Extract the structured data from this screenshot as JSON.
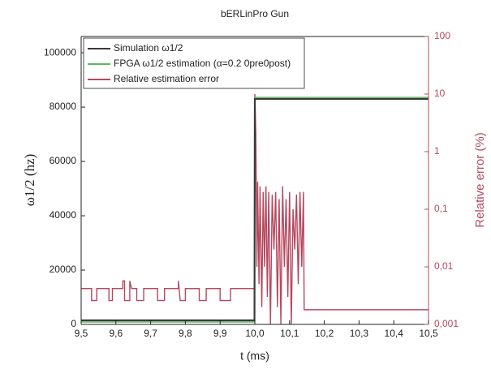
{
  "chart_data": {
    "type": "line",
    "title": "bERLinPro Gun",
    "x_label": "t (ms)",
    "y_label": "ω1/2 (hz)",
    "y2_label": "Relative error (%)",
    "xlim": [
      9.5,
      10.5
    ],
    "xticks": [
      {
        "value": 9.5,
        "label": "9,5"
      },
      {
        "value": 9.6,
        "label": "9,6"
      },
      {
        "value": 9.7,
        "label": "9,7"
      },
      {
        "value": 9.8,
        "label": "9,8"
      },
      {
        "value": 9.9,
        "label": "9,9"
      },
      {
        "value": 10.0,
        "label": "10,0"
      },
      {
        "value": 10.1,
        "label": "10,1"
      },
      {
        "value": 10.2,
        "label": "10,2"
      },
      {
        "value": 10.3,
        "label": "10,3"
      },
      {
        "value": 10.4,
        "label": "10,4"
      },
      {
        "value": 10.5,
        "label": "10,5"
      }
    ],
    "ylim": [
      0,
      106000
    ],
    "yticks": [
      0,
      20000,
      40000,
      60000,
      80000,
      100000
    ],
    "y2lim": [
      0.001,
      100
    ],
    "y2scale": "log",
    "y2color": "#b5485e",
    "y2ticks": [
      {
        "value": 0.001,
        "label": "0,001"
      },
      {
        "value": 0.01,
        "label": "0,01"
      },
      {
        "value": 0.1,
        "label": "0,1"
      },
      {
        "value": 1,
        "label": "1"
      },
      {
        "value": 10,
        "label": "10"
      },
      {
        "value": 100,
        "label": "100"
      }
    ],
    "legend": "upper left",
    "series": [
      {
        "name": "Simulation ω1/2",
        "color": "#3a3a3a",
        "x": [
          9.5,
          9.999,
          10.0,
          10.5
        ],
        "values": [
          1500,
          1500,
          83000,
          83000
        ]
      },
      {
        "name": "FPGA ω1/2 estimation (α=0.2 0pre0post)",
        "color": "#5cb85c",
        "x": [
          9.5,
          9.999,
          10.0,
          10.5
        ],
        "values": [
          900,
          900,
          83600,
          83600
        ]
      },
      {
        "name": "Relative estimation error",
        "color": "#b5485e",
        "axis": "y2",
        "x": [
          9.5,
          9.53,
          9.53,
          9.545,
          9.545,
          9.58,
          9.58,
          9.59,
          9.59,
          9.62,
          9.62,
          9.625,
          9.625,
          9.64,
          9.64,
          9.645,
          9.66,
          9.66,
          9.68,
          9.68,
          9.72,
          9.72,
          9.74,
          9.74,
          9.78,
          9.78,
          9.785,
          9.8,
          9.8,
          9.84,
          9.84,
          9.86,
          9.86,
          9.9,
          9.9,
          9.93,
          9.93,
          9.999,
          10.0,
          10.003,
          10.006,
          10.008,
          10.012,
          10.015,
          10.02,
          10.024,
          10.028,
          10.032,
          10.036,
          10.04,
          10.045,
          10.05,
          10.055,
          10.06,
          10.065,
          10.07,
          10.075,
          10.08,
          10.085,
          10.09,
          10.095,
          10.1,
          10.105,
          10.11,
          10.115,
          10.12,
          10.125,
          10.13,
          10.135,
          10.14,
          10.142,
          10.5
        ],
        "values": [
          0.0042,
          0.0042,
          0.0026,
          0.0026,
          0.0042,
          0.0042,
          0.0026,
          0.0026,
          0.0042,
          0.0042,
          0.0057,
          0.0057,
          0.0026,
          0.0026,
          0.0057,
          0.0042,
          0.0042,
          0.0026,
          0.0026,
          0.0042,
          0.0042,
          0.0026,
          0.0026,
          0.0042,
          0.0042,
          0.0057,
          0.0026,
          0.0026,
          0.0042,
          0.0042,
          0.0026,
          0.0026,
          0.0042,
          0.0042,
          0.0026,
          0.0026,
          0.0042,
          0.0042,
          10,
          2,
          0.01,
          0.3,
          0.005,
          0.25,
          0.002,
          0.2,
          0.01,
          0.25,
          0.003,
          0.2,
          0.001,
          0.18,
          0.02,
          0.2,
          0.002,
          0.15,
          0.001,
          0.25,
          0.01,
          0.15,
          0.003,
          0.2,
          0.001,
          0.1,
          0.02,
          0.18,
          0.005,
          0.2,
          0.01,
          0.2,
          0.0018,
          0.0018
        ]
      }
    ]
  }
}
